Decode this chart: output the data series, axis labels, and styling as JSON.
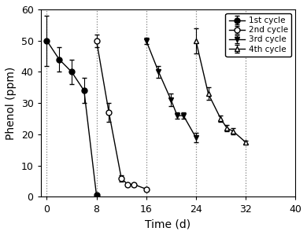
{
  "cycles": {
    "1st cycle": {
      "x": [
        0,
        2,
        4,
        6,
        8
      ],
      "y": [
        50,
        44,
        40,
        34,
        0.5
      ],
      "yerr": [
        8,
        4,
        4,
        4,
        0.3
      ],
      "marker": "o",
      "markerfacecolor": "black",
      "markeredgecolor": "black",
      "label": "1st cycle"
    },
    "2nd cycle": {
      "x": [
        8,
        10,
        12,
        13,
        14,
        16
      ],
      "y": [
        50,
        27,
        6,
        4,
        4,
        2.5
      ],
      "yerr": [
        2,
        3,
        1,
        0.5,
        0.5,
        0.5
      ],
      "marker": "o",
      "markerfacecolor": "white",
      "markeredgecolor": "black",
      "label": "2nd cycle"
    },
    "3rd cycle": {
      "x": [
        16,
        18,
        20,
        21,
        22,
        24
      ],
      "y": [
        50,
        40,
        31,
        26,
        26,
        19
      ],
      "yerr": [
        1,
        2,
        2,
        1,
        1,
        1.5
      ],
      "marker": "v",
      "markerfacecolor": "black",
      "markeredgecolor": "black",
      "label": "3rd cycle"
    },
    "4th cycle": {
      "x": [
        24,
        26,
        28,
        29,
        30,
        32
      ],
      "y": [
        50,
        33,
        25,
        22,
        21,
        17.5
      ],
      "yerr": [
        4,
        2,
        1,
        1,
        1,
        0.5
      ],
      "marker": "^",
      "markerfacecolor": "white",
      "markeredgecolor": "black",
      "label": "4th cycle"
    }
  },
  "xlabel": "Time (d)",
  "ylabel": "Phenol (ppm)",
  "xlim": [
    -1,
    40
  ],
  "ylim": [
    0,
    60
  ],
  "xticks": [
    0,
    8,
    16,
    24,
    32,
    40
  ],
  "yticks": [
    0,
    10,
    20,
    30,
    40,
    50,
    60
  ],
  "vlines": [
    0,
    8,
    16,
    24,
    32
  ],
  "legend_loc": "upper right"
}
